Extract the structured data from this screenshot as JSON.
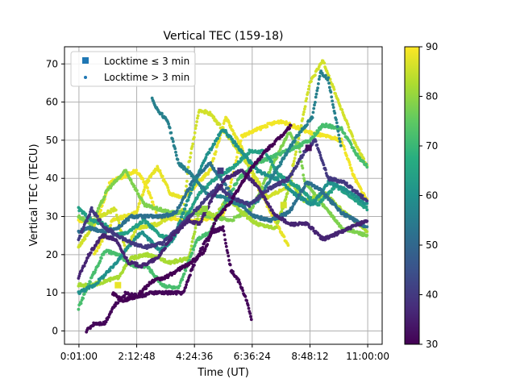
{
  "chart_data": {
    "type": "scatter",
    "title": "Vertical TEC (159-18)",
    "xlabel": "Time (UT)",
    "ylabel": "Vertical TEC (TECU)",
    "x_ticks": [
      "0:01:00",
      "2:12:48",
      "4:24:36",
      "6:36:24",
      "8:48:12",
      "11:00:00"
    ],
    "x_tick_seconds": [
      60,
      7968,
      15876,
      23784,
      31692,
      39600
    ],
    "xlim_seconds": [
      -1918,
      41578
    ],
    "ylim": [
      -3.5,
      74.5
    ],
    "y_ticks": [
      0,
      10,
      20,
      30,
      40,
      50,
      60,
      70
    ],
    "grid": true,
    "legend_position": "upper-left",
    "legend": [
      {
        "label": "Locktime ≤ 3 min",
        "marker": "square"
      },
      {
        "label": "Locktime > 3 min",
        "marker": "dot"
      }
    ],
    "colorbar": {
      "colormap": "viridis",
      "min": 30,
      "max": 90,
      "ticks": [
        30,
        40,
        50,
        60,
        70,
        80,
        90
      ]
    },
    "series": [
      {
        "color_value": 88,
        "points": [
          [
            0.6,
            20
          ],
          [
            1.3,
            29
          ],
          [
            2.2,
            31
          ],
          [
            2.6,
            39
          ],
          [
            3.0,
            43
          ],
          [
            3.5,
            36
          ],
          [
            4.0,
            35
          ],
          [
            5.0,
            42
          ],
          [
            5.6,
            56
          ],
          [
            6.2,
            48
          ],
          [
            6.8,
            38
          ],
          [
            7.4,
            30
          ],
          [
            8.0,
            22
          ]
        ]
      },
      {
        "color_value": 89,
        "points": [
          [
            0.0,
            29
          ],
          [
            0.7,
            29
          ],
          [
            1.2,
            39
          ],
          [
            2.2,
            42
          ],
          [
            2.6,
            38
          ],
          [
            3.0,
            30
          ],
          [
            4.0,
            29
          ],
          [
            4.7,
            29
          ],
          [
            5.5,
            30
          ],
          [
            6.2,
            51
          ],
          [
            7.2,
            54
          ],
          [
            7.7,
            55
          ],
          [
            8.8,
            52
          ],
          [
            10.0,
            50
          ],
          [
            10.5,
            40
          ],
          [
            11.0,
            34
          ]
        ]
      },
      {
        "color_value": 86,
        "points": [
          [
            0.0,
            22
          ],
          [
            0.8,
            30
          ],
          [
            1.4,
            32
          ],
          [
            1.8,
            21
          ],
          [
            2.2,
            27
          ],
          [
            3.0,
            28
          ],
          [
            4.0,
            32
          ],
          [
            4.2,
            44
          ],
          [
            4.6,
            58
          ],
          [
            5.0,
            57
          ],
          [
            5.7,
            51
          ],
          [
            6.5,
            43
          ],
          [
            7.2,
            35
          ],
          [
            8.0,
            38
          ],
          [
            8.8,
            65
          ],
          [
            9.3,
            71
          ],
          [
            10.0,
            58
          ],
          [
            10.6,
            48
          ],
          [
            11.0,
            43
          ]
        ]
      },
      {
        "color_value": 78,
        "points": [
          [
            0.0,
            30
          ],
          [
            0.5,
            28
          ],
          [
            1.1,
            37
          ],
          [
            1.8,
            42
          ],
          [
            2.5,
            33
          ],
          [
            3.5,
            31
          ],
          [
            4.5,
            31
          ],
          [
            5.0,
            30
          ],
          [
            5.8,
            29
          ],
          [
            6.6,
            32
          ],
          [
            7.2,
            41
          ],
          [
            8.0,
            52
          ],
          [
            8.4,
            48
          ],
          [
            8.6,
            39
          ],
          [
            9.2,
            34
          ],
          [
            10.0,
            27
          ],
          [
            11.0,
            25
          ]
        ]
      },
      {
        "color_value": 82,
        "points": [
          [
            0.0,
            12
          ],
          [
            0.5,
            12
          ],
          [
            1.0,
            13
          ],
          [
            1.5,
            14
          ],
          [
            2.0,
            19
          ],
          [
            2.6,
            20
          ],
          [
            3.5,
            18
          ],
          [
            4.2,
            19
          ],
          [
            4.6,
            32
          ],
          [
            5.2,
            30
          ],
          [
            5.7,
            35
          ],
          [
            6.2,
            31
          ],
          [
            6.8,
            28
          ],
          [
            7.5,
            27
          ],
          [
            8.1,
            39
          ],
          [
            8.6,
            34
          ],
          [
            9.4,
            36
          ],
          [
            10.1,
            31
          ],
          [
            11.0,
            26
          ]
        ]
      },
      {
        "color_value": 72,
        "points": [
          [
            0.0,
            6
          ],
          [
            0.5,
            14
          ],
          [
            1.0,
            21
          ],
          [
            1.5,
            20
          ],
          [
            2.1,
            17
          ],
          [
            2.6,
            17
          ],
          [
            3.2,
            12
          ],
          [
            3.8,
            11
          ],
          [
            4.5,
            24
          ],
          [
            5.0,
            26
          ],
          [
            5.6,
            34
          ],
          [
            6.1,
            40
          ],
          [
            6.8,
            44
          ],
          [
            7.5,
            46
          ],
          [
            8.2,
            48
          ],
          [
            8.8,
            50
          ],
          [
            9.3,
            54
          ],
          [
            10.0,
            53
          ],
          [
            10.7,
            45
          ],
          [
            11.0,
            43
          ]
        ]
      },
      {
        "color_value": 64,
        "points": [
          [
            0.0,
            32
          ],
          [
            0.5,
            29
          ],
          [
            1.0,
            28
          ],
          [
            1.4,
            25
          ],
          [
            1.9,
            26
          ],
          [
            2.5,
            29
          ],
          [
            3.1,
            25
          ],
          [
            3.6,
            24
          ],
          [
            4.1,
            30
          ],
          [
            4.6,
            36
          ],
          [
            5.2,
            40
          ],
          [
            5.9,
            43
          ],
          [
            6.5,
            47
          ],
          [
            7.1,
            47
          ],
          [
            7.6,
            41
          ],
          [
            8.3,
            38
          ],
          [
            9.1,
            33
          ],
          [
            9.8,
            38
          ],
          [
            10.4,
            35
          ],
          [
            11.0,
            32
          ]
        ]
      },
      {
        "color_value": 60,
        "points": [
          [
            0.0,
            10
          ],
          [
            0.6,
            12
          ],
          [
            1.2,
            16
          ],
          [
            1.9,
            22
          ],
          [
            2.4,
            26
          ],
          [
            3.1,
            21
          ],
          [
            3.6,
            24
          ],
          [
            4.2,
            35
          ],
          [
            4.8,
            45
          ],
          [
            5.5,
            53
          ],
          [
            6.2,
            47
          ],
          [
            6.8,
            42
          ],
          [
            7.5,
            40
          ],
          [
            8.2,
            36
          ],
          [
            8.9,
            33
          ],
          [
            9.5,
            39
          ],
          [
            10.2,
            37
          ],
          [
            11.0,
            33
          ]
        ]
      },
      {
        "color_value": 52,
        "points": [
          [
            0.0,
            26
          ],
          [
            0.4,
            27
          ],
          [
            1.0,
            26
          ],
          [
            1.5,
            27
          ],
          [
            2.0,
            30
          ],
          [
            2.6,
            30
          ],
          [
            3.2,
            30
          ],
          [
            3.7,
            31
          ],
          [
            4.4,
            40
          ],
          [
            5.0,
            44
          ],
          [
            5.5,
            39
          ],
          [
            6.0,
            34
          ],
          [
            6.7,
            30
          ],
          [
            7.3,
            29
          ],
          [
            8.0,
            31
          ],
          [
            8.7,
            39
          ],
          [
            9.2,
            37
          ],
          [
            10.0,
            31
          ],
          [
            11.0,
            27
          ]
        ]
      },
      {
        "color_value": 56,
        "points": [
          [
            2.8,
            61
          ],
          [
            3.0,
            58
          ],
          [
            3.4,
            55
          ],
          [
            3.8,
            44
          ],
          [
            4.3,
            41
          ],
          [
            4.9,
            36
          ],
          [
            5.5,
            35
          ],
          [
            6.1,
            33
          ],
          [
            6.8,
            34
          ],
          [
            7.6,
            43
          ],
          [
            8.3,
            51
          ],
          [
            8.9,
            56
          ],
          [
            9.2,
            68
          ],
          [
            9.5,
            66
          ],
          [
            10.0,
            48
          ]
        ]
      },
      {
        "color_value": 40,
        "points": [
          [
            0.0,
            24
          ],
          [
            0.5,
            32
          ],
          [
            1.0,
            27
          ],
          [
            1.5,
            25
          ],
          [
            2.0,
            23
          ],
          [
            2.6,
            22
          ],
          [
            3.2,
            23
          ],
          [
            3.8,
            27
          ],
          [
            4.5,
            32
          ],
          [
            5.3,
            38
          ],
          [
            5.8,
            35
          ],
          [
            6.5,
            33
          ],
          [
            7.2,
            37
          ],
          [
            8.0,
            40
          ],
          [
            8.6,
            47
          ],
          [
            9.0,
            50
          ],
          [
            9.5,
            40
          ],
          [
            10.1,
            39
          ],
          [
            11.0,
            34
          ]
        ]
      },
      {
        "color_value": 36,
        "points": [
          [
            0.0,
            14
          ],
          [
            0.4,
            20
          ],
          [
            0.9,
            25
          ],
          [
            1.4,
            24
          ],
          [
            1.9,
            18
          ],
          [
            2.4,
            17
          ],
          [
            3.0,
            19
          ],
          [
            3.6,
            25
          ],
          [
            4.2,
            29
          ],
          [
            4.6,
            28
          ],
          [
            5.1,
            35
          ],
          [
            5.6,
            40
          ],
          [
            6.2,
            42
          ],
          [
            6.8,
            38
          ],
          [
            7.4,
            31
          ],
          [
            8.0,
            28
          ],
          [
            8.7,
            28
          ],
          [
            9.3,
            24
          ],
          [
            10.0,
            26
          ],
          [
            11.0,
            29
          ]
        ]
      },
      {
        "color_value": 31,
        "points": [
          [
            0.3,
            0
          ],
          [
            0.6,
            2
          ],
          [
            1.0,
            2
          ],
          [
            1.3,
            6
          ],
          [
            1.8,
            10
          ],
          [
            2.3,
            9
          ],
          [
            2.8,
            10
          ],
          [
            3.4,
            10
          ],
          [
            4.0,
            10
          ],
          [
            4.3,
            16
          ],
          [
            4.7,
            22
          ],
          [
            5.1,
            26
          ],
          [
            5.5,
            27
          ],
          [
            5.8,
            16
          ],
          [
            6.1,
            13
          ],
          [
            6.4,
            8
          ],
          [
            6.6,
            2
          ]
        ]
      },
      {
        "color_value": 30,
        "points": [
          [
            1.3,
            10
          ],
          [
            1.7,
            8
          ],
          [
            2.2,
            9
          ],
          [
            2.8,
            13
          ],
          [
            3.3,
            14
          ],
          [
            3.8,
            16
          ],
          [
            4.3,
            18
          ],
          [
            4.8,
            21
          ],
          [
            5.2,
            29
          ],
          [
            5.8,
            34
          ],
          [
            6.5,
            42
          ],
          [
            7.1,
            47
          ],
          [
            7.7,
            51
          ],
          [
            8.1,
            54
          ]
        ]
      }
    ],
    "short_locktime_squares": [
      {
        "x_hours": 1.5,
        "y": 12,
        "color_value": 88
      },
      {
        "x_hours": 4.8,
        "y": 32,
        "color_value": 80
      },
      {
        "x_hours": 5.4,
        "y": 42,
        "color_value": 40
      },
      {
        "x_hours": 7.8,
        "y": 33,
        "color_value": 86
      },
      {
        "x_hours": 8.75,
        "y": 48,
        "color_value": 32
      }
    ]
  }
}
